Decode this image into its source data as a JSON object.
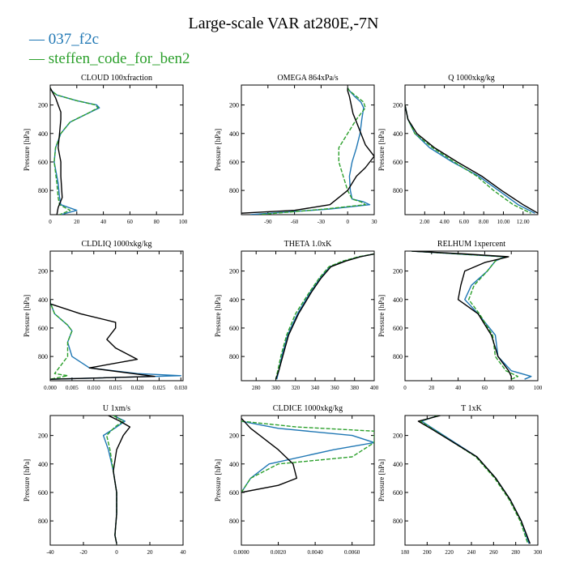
{
  "title": "Large-scale VAR at280E,-7N",
  "legend": [
    {
      "label": "037_f2c",
      "color": "#1f77b4"
    },
    {
      "label": "steffen_code_for_ben2",
      "color": "#2ca02c"
    }
  ],
  "ylabel": "Pressure [hPa]",
  "chart_data": [
    {
      "type": "line",
      "title": "CLOUD  100xfraction",
      "ylabel": "Pressure [hPa]",
      "xlim": [
        0,
        100
      ],
      "ylim": [
        970,
        60
      ],
      "xticks": [
        0,
        20,
        40,
        60,
        80,
        100
      ],
      "xtick_labels": [
        "0",
        "20",
        "40",
        "60",
        "80",
        "100"
      ],
      "yticks": [
        200,
        400,
        600,
        800
      ],
      "ytick_labels": [
        "200",
        "400",
        "600",
        "800"
      ],
      "series": [
        {
          "name": "037_f2c",
          "color": "#1f77b4",
          "x": [
            0,
            1,
            5,
            20,
            35,
            37,
            28,
            15,
            8,
            4,
            3,
            6,
            7,
            8,
            20,
            8
          ],
          "y": [
            80,
            100,
            130,
            170,
            200,
            220,
            260,
            320,
            400,
            500,
            600,
            750,
            850,
            900,
            940,
            970
          ]
        },
        {
          "name": "steffen_code_for_ben2",
          "color": "#2ca02c",
          "x": [
            0,
            1,
            5,
            20,
            34,
            36,
            28,
            15,
            8,
            4,
            3,
            5,
            6,
            7,
            15,
            7
          ],
          "y": [
            80,
            100,
            130,
            170,
            200,
            220,
            260,
            320,
            400,
            500,
            600,
            750,
            850,
            900,
            940,
            970
          ]
        },
        {
          "color": "#000000",
          "x": [
            0,
            4,
            6,
            8,
            8,
            7,
            6,
            8,
            8,
            9,
            6,
            5
          ],
          "y": [
            80,
            150,
            200,
            250,
            300,
            400,
            500,
            600,
            700,
            850,
            920,
            970
          ]
        }
      ]
    },
    {
      "type": "line",
      "title": "OMEGA  864xPa/s",
      "ylabel": "Pressure [hPa]",
      "xlim": [
        -120,
        30
      ],
      "ylim": [
        970,
        60
      ],
      "xticks": [
        -90,
        -60,
        -30,
        0,
        30
      ],
      "xtick_labels": [
        "-90",
        "-60",
        "-30",
        "0",
        "30"
      ],
      "yticks": [
        200,
        400,
        600,
        800
      ],
      "ytick_labels": [
        "200",
        "400",
        "600",
        "800"
      ],
      "series": [
        {
          "name": "037_f2c",
          "color": "#1f77b4",
          "x": [
            0,
            2,
            8,
            15,
            18,
            16,
            14,
            10,
            5,
            2,
            3,
            5,
            18,
            25,
            -20,
            -110
          ],
          "y": [
            80,
            100,
            140,
            180,
            220,
            300,
            400,
            500,
            600,
            700,
            800,
            860,
            880,
            900,
            930,
            970
          ]
        },
        {
          "name": "steffen_code_for_ben2",
          "color": "#2ca02c",
          "x": [
            0,
            2,
            10,
            18,
            20,
            10,
            0,
            -10,
            -10,
            -5,
            0,
            5,
            15,
            20,
            -25,
            -100
          ],
          "y": [
            80,
            100,
            140,
            180,
            220,
            300,
            400,
            500,
            600,
            700,
            800,
            860,
            880,
            900,
            930,
            970
          ]
        },
        {
          "color": "#000000",
          "x": [
            0,
            0,
            2,
            4,
            6,
            10,
            15,
            20,
            30,
            20,
            10,
            0,
            -20,
            -60,
            -120
          ],
          "y": [
            80,
            100,
            140,
            200,
            260,
            320,
            400,
            480,
            560,
            640,
            700,
            800,
            900,
            940,
            960
          ]
        }
      ]
    },
    {
      "type": "line",
      "title": "Q  1000xkg/kg",
      "ylabel": "Pressure [hPa]",
      "xlim": [
        0,
        13.5
      ],
      "ylim": [
        970,
        60
      ],
      "xticks": [
        2,
        4,
        6,
        8,
        10,
        12
      ],
      "xtick_labels": [
        "2.00",
        "4.00",
        "6.00",
        "8.00",
        "10.00",
        "12.00"
      ],
      "yticks": [
        200,
        400,
        600,
        800
      ],
      "ytick_labels": [
        "200",
        "400",
        "600",
        "800"
      ],
      "series": [
        {
          "name": "037_f2c",
          "color": "#1f77b4",
          "x": [
            0,
            0.3,
            1,
            2.5,
            4.8,
            7.5,
            9.5,
            11.5,
            13.2
          ],
          "y": [
            200,
            300,
            400,
            500,
            600,
            700,
            800,
            900,
            960
          ]
        },
        {
          "name": "steffen_code_for_ben2",
          "color": "#2ca02c",
          "x": [
            0,
            0.3,
            1,
            2.8,
            5.0,
            7.3,
            9.0,
            11.0,
            12.8
          ],
          "y": [
            200,
            300,
            400,
            500,
            600,
            700,
            800,
            900,
            960
          ]
        },
        {
          "color": "#000000",
          "x": [
            0,
            0.3,
            1.2,
            3.0,
            5.3,
            7.8,
            9.8,
            12.0,
            13.5
          ],
          "y": [
            200,
            300,
            400,
            500,
            600,
            700,
            800,
            900,
            960
          ]
        }
      ]
    },
    {
      "type": "line",
      "title": "CLDLIQ  1000xkg/kg",
      "ylabel": "Pressure [hPa]",
      "xlim": [
        0,
        0.0305
      ],
      "ylim": [
        970,
        60
      ],
      "xticks": [
        0,
        0.005,
        0.01,
        0.015,
        0.02,
        0.025,
        0.03
      ],
      "xtick_labels": [
        "0.000",
        "0.005",
        "0.010",
        "0.015",
        "0.020",
        "0.025",
        "0.030"
      ],
      "yticks": [
        200,
        400,
        600,
        800
      ],
      "ytick_labels": [
        "200",
        "400",
        "600",
        "800"
      ],
      "series": [
        {
          "name": "037_f2c",
          "color": "#1f77b4",
          "x": [
            0,
            0,
            0.001,
            0.004,
            0.005,
            0.004,
            0.005,
            0.009,
            0.02,
            0.03,
            0.0
          ],
          "y": [
            400,
            420,
            500,
            580,
            620,
            700,
            800,
            880,
            920,
            935,
            960
          ]
        },
        {
          "name": "steffen_code_for_ben2",
          "color": "#2ca02c",
          "x": [
            0,
            0,
            0.001,
            0.004,
            0.005,
            0.004,
            0.004,
            0.002,
            0.001,
            0.004,
            0.0
          ],
          "y": [
            400,
            420,
            500,
            580,
            620,
            700,
            800,
            880,
            920,
            935,
            960
          ]
        },
        {
          "color": "#000000",
          "x": [
            0,
            0,
            0.007,
            0.015,
            0.015,
            0.013,
            0.015,
            0.02,
            0.009,
            0.024,
            0.0
          ],
          "y": [
            400,
            430,
            500,
            560,
            600,
            680,
            740,
            820,
            880,
            940,
            960
          ]
        }
      ]
    },
    {
      "type": "line",
      "title": "THETA  1.0xK",
      "ylabel": "Pressure [hPa]",
      "xlim": [
        265,
        400
      ],
      "ylim": [
        970,
        60
      ],
      "xticks": [
        280,
        300,
        320,
        340,
        360,
        380,
        400
      ],
      "xtick_labels": [
        "280",
        "300",
        "320",
        "340",
        "360",
        "380",
        "400"
      ],
      "yticks": [
        200,
        400,
        600,
        800
      ],
      "ytick_labels": [
        "200",
        "400",
        "600",
        "800"
      ],
      "series": [
        {
          "name": "037_f2c",
          "color": "#1f77b4",
          "x": [
            400,
            385,
            370,
            355,
            345,
            335,
            322,
            312,
            306,
            303,
            301
          ],
          "y": [
            80,
            100,
            130,
            170,
            250,
            350,
            500,
            650,
            800,
            900,
            960
          ]
        },
        {
          "name": "steffen_code_for_ben2",
          "color": "#2ca02c",
          "x": [
            400,
            384,
            368,
            354,
            344,
            334,
            320,
            311,
            305,
            302,
            300
          ],
          "y": [
            80,
            100,
            130,
            170,
            250,
            350,
            500,
            650,
            800,
            900,
            960
          ]
        },
        {
          "color": "#000000",
          "x": [
            400,
            386,
            371,
            356,
            346,
            336,
            323,
            313,
            307,
            303,
            300
          ],
          "y": [
            80,
            100,
            130,
            170,
            250,
            350,
            500,
            650,
            800,
            900,
            960
          ]
        }
      ]
    },
    {
      "type": "line",
      "title": "RELHUM  1xpercent",
      "ylabel": "Pressure [hPa]",
      "xlim": [
        0,
        100
      ],
      "ylim": [
        970,
        60
      ],
      "xticks": [
        0,
        20,
        40,
        60,
        80,
        100
      ],
      "xtick_labels": [
        "0",
        "20",
        "40",
        "60",
        "80",
        "100"
      ],
      "yticks": [
        200,
        400,
        600,
        800
      ],
      "ytick_labels": [
        "200",
        "400",
        "600",
        "800"
      ],
      "series": [
        {
          "name": "037_f2c",
          "color": "#1f77b4",
          "x": [
            5,
            40,
            75,
            68,
            62,
            50,
            45,
            55,
            68,
            70,
            80,
            95,
            90
          ],
          "y": [
            60,
            80,
            100,
            130,
            200,
            300,
            400,
            500,
            650,
            800,
            900,
            940,
            960
          ]
        },
        {
          "name": "steffen_code_for_ben2",
          "color": "#2ca02c",
          "x": [
            5,
            40,
            75,
            68,
            62,
            52,
            48,
            56,
            66,
            68,
            76,
            85,
            80
          ],
          "y": [
            60,
            80,
            100,
            130,
            200,
            300,
            400,
            500,
            650,
            800,
            900,
            940,
            960
          ]
        },
        {
          "color": "#000000",
          "x": [
            5,
            45,
            78,
            60,
            45,
            42,
            40,
            55,
            65,
            70,
            78,
            80,
            80
          ],
          "y": [
            60,
            80,
            100,
            140,
            200,
            300,
            400,
            500,
            650,
            800,
            900,
            940,
            960
          ]
        }
      ]
    },
    {
      "type": "line",
      "title": "U  1xm/s",
      "ylabel": "Pressure [hPa]",
      "xlim": [
        -40,
        40
      ],
      "ylim": [
        970,
        60
      ],
      "xticks": [
        -40,
        -20,
        0,
        20,
        40
      ],
      "xtick_labels": [
        "-40",
        "-20",
        "0",
        "20",
        "40"
      ],
      "yticks": [
        200,
        400,
        600,
        800
      ],
      "ytick_labels": [
        "200",
        "400",
        "600",
        "800"
      ],
      "series": [
        {
          "name": "037_f2c",
          "color": "#1f77b4",
          "x": [
            -2,
            5,
            0,
            -8,
            -5,
            -2,
            0,
            0,
            -1,
            0
          ],
          "y": [
            60,
            100,
            140,
            200,
            300,
            450,
            600,
            750,
            900,
            960
          ]
        },
        {
          "name": "steffen_code_for_ben2",
          "color": "#2ca02c",
          "x": [
            -2,
            4,
            -1,
            -6,
            -4,
            -2,
            0,
            0,
            -1,
            0
          ],
          "y": [
            60,
            100,
            140,
            200,
            300,
            450,
            600,
            750,
            900,
            960
          ]
        },
        {
          "color": "#000000",
          "x": [
            -5,
            2,
            8,
            4,
            0,
            -2,
            0,
            0,
            -1,
            0
          ],
          "y": [
            60,
            100,
            140,
            200,
            300,
            450,
            600,
            750,
            900,
            960
          ]
        }
      ]
    },
    {
      "type": "line",
      "title": "CLDICE  1000xkg/kg",
      "ylabel": "Pressure [hPa]",
      "xlim": [
        0,
        0.0072
      ],
      "ylim": [
        970,
        60
      ],
      "xticks": [
        0,
        0.002,
        0.004,
        0.006
      ],
      "xtick_labels": [
        "0.0000",
        "0.0020",
        "0.0040",
        "0.0060"
      ],
      "yticks": [
        200,
        400,
        600,
        800
      ],
      "ytick_labels": [
        "200",
        "400",
        "600",
        "800"
      ],
      "series": [
        {
          "name": "037_f2c",
          "color": "#1f77b4",
          "x": [
            0,
            0.002,
            0.006,
            0.0072,
            0.005,
            0.0015,
            0.0005,
            0
          ],
          "y": [
            100,
            150,
            200,
            250,
            300,
            400,
            500,
            600
          ]
        },
        {
          "name": "steffen_code_for_ben2",
          "color": "#2ca02c",
          "x": [
            0,
            0.003,
            0.0072,
            0.0072,
            0.006,
            0.002,
            0.0005,
            0
          ],
          "y": [
            100,
            140,
            170,
            250,
            350,
            400,
            500,
            600
          ]
        },
        {
          "color": "#000000",
          "x": [
            0,
            0.0005,
            0.001,
            0.002,
            0.0028,
            0.003,
            0.002,
            0
          ],
          "y": [
            80,
            150,
            200,
            300,
            400,
            500,
            550,
            600
          ]
        }
      ]
    },
    {
      "type": "line",
      "title": "T  1xK",
      "ylabel": "Pressure [hPa]",
      "xlim": [
        180,
        300
      ],
      "ylim": [
        970,
        60
      ],
      "xticks": [
        180,
        200,
        220,
        240,
        260,
        280,
        300
      ],
      "xtick_labels": [
        "180",
        "200",
        "220",
        "240",
        "260",
        "280",
        "300"
      ],
      "yticks": [
        200,
        400,
        600,
        800
      ],
      "ytick_labels": [
        "200",
        "400",
        "600",
        "800"
      ],
      "series": [
        {
          "name": "037_f2c",
          "color": "#1f77b4",
          "x": [
            210,
            195,
            205,
            225,
            245,
            262,
            275,
            285,
            292
          ],
          "y": [
            60,
            100,
            150,
            250,
            350,
            500,
            650,
            800,
            960
          ]
        },
        {
          "name": "steffen_code_for_ben2",
          "color": "#2ca02c",
          "x": [
            210,
            194,
            204,
            224,
            244,
            261,
            274,
            284,
            291
          ],
          "y": [
            60,
            100,
            150,
            250,
            350,
            500,
            650,
            800,
            960
          ]
        },
        {
          "color": "#000000",
          "x": [
            212,
            192,
            203,
            224,
            245,
            262,
            275,
            285,
            293
          ],
          "y": [
            60,
            100,
            150,
            250,
            350,
            500,
            650,
            800,
            960
          ]
        }
      ]
    }
  ]
}
